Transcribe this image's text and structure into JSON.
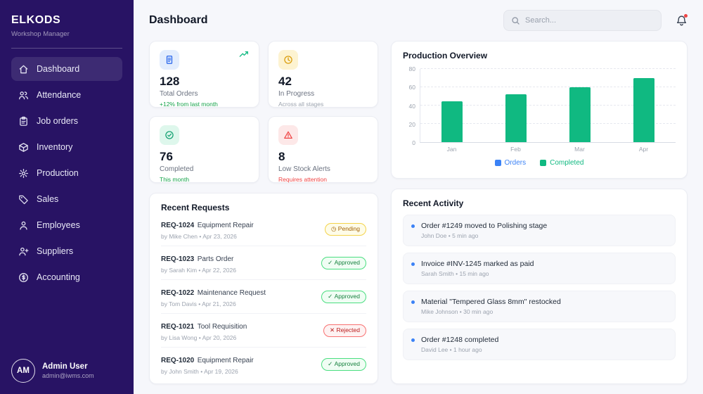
{
  "sidebar": {
    "brand": "ELKODS",
    "subtitle": "Workshop Manager",
    "items": [
      {
        "label": "Dashboard",
        "icon": "home-icon"
      },
      {
        "label": "Attendance",
        "icon": "users-icon"
      },
      {
        "label": "Job orders",
        "icon": "clipboard-icon"
      },
      {
        "label": "Inventory",
        "icon": "box-icon"
      },
      {
        "label": "Production",
        "icon": "gear-icon"
      },
      {
        "label": "Sales",
        "icon": "tag-icon"
      },
      {
        "label": "Employees",
        "icon": "user-icon"
      },
      {
        "label": "Suppliers",
        "icon": "user-plus-icon"
      },
      {
        "label": "Accounting",
        "icon": "dollar-icon"
      }
    ],
    "user": {
      "initials": "AM",
      "name": "Admin User",
      "email": "admin@iwms.com"
    }
  },
  "header": {
    "title": "Dashboard",
    "search_placeholder": "Search..."
  },
  "stats": [
    {
      "value": "128",
      "label": "Total Orders",
      "note": "+12% from last month"
    },
    {
      "value": "42",
      "label": "In Progress",
      "note": "Across all stages"
    },
    {
      "value": "76",
      "label": "Completed",
      "note": "This month"
    },
    {
      "value": "8",
      "label": "Low Stock Alerts",
      "note": "Requires attention"
    }
  ],
  "chart_data": {
    "type": "bar",
    "title": "Production Overview",
    "categories": [
      "Jan",
      "Feb",
      "Mar",
      "Apr"
    ],
    "series": [
      {
        "name": "Orders",
        "color": "#3b82f6",
        "values": [
          45,
          52,
          60,
          70
        ]
      },
      {
        "name": "Completed",
        "color": "#10b981",
        "values": [
          45,
          52,
          60,
          70
        ]
      }
    ],
    "ylim": [
      0,
      80
    ],
    "yticks": [
      0,
      20,
      40,
      60,
      80
    ],
    "grid": true,
    "legend_position": "bottom"
  },
  "requests": {
    "title": "Recent Requests",
    "items": [
      {
        "id": "REQ-1024",
        "name": "Equipment Repair",
        "meta": "by Mike Chen • Apr 23, 2026",
        "status": "Pending"
      },
      {
        "id": "REQ-1023",
        "name": "Parts Order",
        "meta": "by Sarah Kim • Apr 22, 2026",
        "status": "Approved"
      },
      {
        "id": "REQ-1022",
        "name": "Maintenance Request",
        "meta": "by Tom Davis • Apr 21, 2026",
        "status": "Approved"
      },
      {
        "id": "REQ-1021",
        "name": "Tool Requisition",
        "meta": "by Lisa Wong • Apr 20, 2026",
        "status": "Rejected"
      },
      {
        "id": "REQ-1020",
        "name": "Equipment Repair",
        "meta": "by John Smith • Apr 19, 2026",
        "status": "Approved"
      }
    ]
  },
  "activity": {
    "title": "Recent Activity",
    "items": [
      {
        "text": "Order #1249 moved to Polishing stage",
        "meta": "John Doe • 5 min ago"
      },
      {
        "text": "Invoice #INV-1245 marked as paid",
        "meta": "Sarah Smith • 15 min ago"
      },
      {
        "text": "Material \"Tempered Glass 8mm\" restocked",
        "meta": "Mike Johnson • 30 min ago"
      },
      {
        "text": "Order #1248 completed",
        "meta": "David Lee • 1 hour ago"
      }
    ]
  },
  "colors": {
    "sidebar_bg": "#281364",
    "accent_blue": "#3b82f6",
    "accent_green": "#10b981",
    "pending": "#a16207",
    "approved": "#15803d",
    "rejected": "#b91c1c"
  }
}
